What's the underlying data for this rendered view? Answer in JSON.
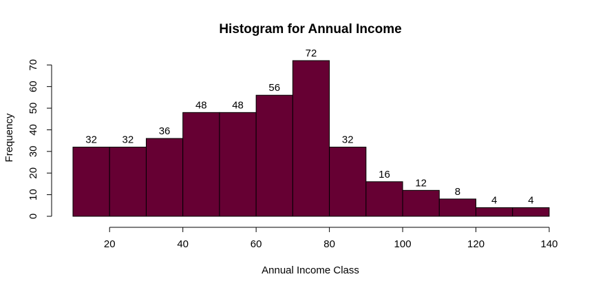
{
  "chart_data": {
    "type": "bar",
    "title": "Histogram for Annual Income",
    "xlabel": "Annual Income Class",
    "ylabel": "Frequency",
    "bins": [
      [
        10,
        20
      ],
      [
        20,
        30
      ],
      [
        30,
        40
      ],
      [
        40,
        50
      ],
      [
        50,
        60
      ],
      [
        60,
        70
      ],
      [
        70,
        80
      ],
      [
        80,
        90
      ],
      [
        90,
        100
      ],
      [
        100,
        110
      ],
      [
        110,
        120
      ],
      [
        120,
        130
      ],
      [
        130,
        140
      ]
    ],
    "values": [
      32,
      32,
      36,
      48,
      48,
      56,
      72,
      32,
      16,
      12,
      8,
      4,
      4
    ],
    "xticks": [
      20,
      40,
      60,
      80,
      100,
      120,
      140
    ],
    "yticks": [
      0,
      10,
      20,
      30,
      40,
      50,
      60,
      70
    ],
    "xlim": [
      10,
      140
    ],
    "ylim": [
      0,
      72
    ],
    "bar_color": "#660033",
    "grid": false
  }
}
